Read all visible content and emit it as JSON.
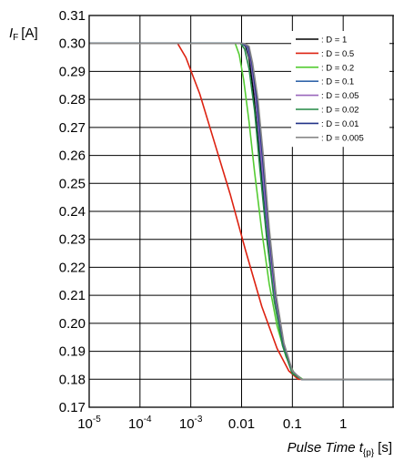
{
  "chart_data": {
    "type": "line",
    "ylabel": {
      "main": "I",
      "sub": "F",
      "unit": "[A]"
    },
    "xlabel": {
      "main": "Pulse Time t",
      "sub": "{p}",
      "unit": "[s]"
    },
    "x_scale": "log",
    "xlim": [
      1e-05,
      10
    ],
    "ylim": [
      0.17,
      0.31
    ],
    "grid": true,
    "legend_position": "top-right",
    "x_ticks": [
      {
        "value": 1e-05,
        "base": "10",
        "exp": "-5"
      },
      {
        "value": 0.0001,
        "base": "10",
        "exp": "-4"
      },
      {
        "value": 0.001,
        "base": "10",
        "exp": "-3"
      },
      {
        "value": 0.01,
        "text": "0.01"
      },
      {
        "value": 0.1,
        "text": "0.1"
      },
      {
        "value": 1,
        "text": "1"
      }
    ],
    "y_ticks": [
      "0.17",
      "0.18",
      "0.19",
      "0.20",
      "0.21",
      "0.22",
      "0.23",
      "0.24",
      "0.25",
      "0.26",
      "0.27",
      "0.28",
      "0.29",
      "0.30",
      "0.31"
    ],
    "series": [
      {
        "name": ": D = 1",
        "color": "#000000",
        "points": [
          [
            1e-05,
            0.3
          ],
          [
            0.01,
            0.3
          ],
          [
            0.012,
            0.299
          ],
          [
            0.014,
            0.295
          ],
          [
            0.017,
            0.283
          ],
          [
            0.022,
            0.262
          ],
          [
            0.03,
            0.235
          ],
          [
            0.045,
            0.208
          ],
          [
            0.065,
            0.192
          ],
          [
            0.1,
            0.182
          ],
          [
            0.15,
            0.18
          ],
          [
            10,
            0.18
          ]
        ]
      },
      {
        "name": ": D = 0.5",
        "color": "#dd2211",
        "points": [
          [
            1e-05,
            0.3
          ],
          [
            0.00055,
            0.3
          ],
          [
            0.0008,
            0.295
          ],
          [
            0.0015,
            0.282
          ],
          [
            0.003,
            0.264
          ],
          [
            0.006,
            0.246
          ],
          [
            0.012,
            0.226
          ],
          [
            0.025,
            0.206
          ],
          [
            0.05,
            0.191
          ],
          [
            0.085,
            0.183
          ],
          [
            0.13,
            0.18
          ],
          [
            10,
            0.18
          ]
        ]
      },
      {
        "name": ": D = 0.2",
        "color": "#55cc33",
        "points": [
          [
            1e-05,
            0.3
          ],
          [
            0.0075,
            0.3
          ],
          [
            0.009,
            0.296
          ],
          [
            0.011,
            0.287
          ],
          [
            0.014,
            0.272
          ],
          [
            0.018,
            0.254
          ],
          [
            0.025,
            0.233
          ],
          [
            0.035,
            0.214
          ],
          [
            0.05,
            0.199
          ],
          [
            0.075,
            0.188
          ],
          [
            0.11,
            0.182
          ],
          [
            0.16,
            0.18
          ],
          [
            10,
            0.18
          ]
        ]
      },
      {
        "name": ": D = 0.1",
        "color": "#3366aa",
        "points": [
          [
            1e-05,
            0.3
          ],
          [
            0.01,
            0.3
          ],
          [
            0.0125,
            0.299
          ],
          [
            0.015,
            0.294
          ],
          [
            0.019,
            0.28
          ],
          [
            0.024,
            0.259
          ],
          [
            0.032,
            0.234
          ],
          [
            0.045,
            0.21
          ],
          [
            0.065,
            0.193
          ],
          [
            0.1,
            0.183
          ],
          [
            0.15,
            0.18
          ],
          [
            10,
            0.18
          ]
        ]
      },
      {
        "name": ": D = 0.05",
        "color": "#9966bb",
        "points": [
          [
            1e-05,
            0.3
          ],
          [
            0.0105,
            0.3
          ],
          [
            0.013,
            0.299
          ],
          [
            0.0155,
            0.293
          ],
          [
            0.0195,
            0.279
          ],
          [
            0.025,
            0.258
          ],
          [
            0.033,
            0.233
          ],
          [
            0.046,
            0.209
          ],
          [
            0.066,
            0.193
          ],
          [
            0.1,
            0.183
          ],
          [
            0.15,
            0.18
          ],
          [
            10,
            0.18
          ]
        ]
      },
      {
        "name": ": D = 0.02",
        "color": "#228844",
        "points": [
          [
            1e-05,
            0.3
          ],
          [
            0.0095,
            0.3
          ],
          [
            0.0115,
            0.298
          ],
          [
            0.014,
            0.291
          ],
          [
            0.018,
            0.276
          ],
          [
            0.023,
            0.255
          ],
          [
            0.031,
            0.231
          ],
          [
            0.044,
            0.208
          ],
          [
            0.064,
            0.192
          ],
          [
            0.1,
            0.182
          ],
          [
            0.15,
            0.18
          ],
          [
            10,
            0.18
          ]
        ]
      },
      {
        "name": ": D = 0.01",
        "color": "#223388",
        "points": [
          [
            1e-05,
            0.3
          ],
          [
            0.0108,
            0.3
          ],
          [
            0.0135,
            0.299
          ],
          [
            0.016,
            0.293
          ],
          [
            0.02,
            0.28
          ],
          [
            0.026,
            0.259
          ],
          [
            0.034,
            0.234
          ],
          [
            0.047,
            0.21
          ],
          [
            0.067,
            0.193
          ],
          [
            0.1,
            0.183
          ],
          [
            0.15,
            0.18
          ],
          [
            10,
            0.18
          ]
        ]
      },
      {
        "name": ": D = 0.005",
        "color": "#888888",
        "points": [
          [
            1e-05,
            0.3
          ],
          [
            0.0112,
            0.3
          ],
          [
            0.014,
            0.299
          ],
          [
            0.0165,
            0.293
          ],
          [
            0.021,
            0.28
          ],
          [
            0.027,
            0.259
          ],
          [
            0.035,
            0.234
          ],
          [
            0.048,
            0.21
          ],
          [
            0.068,
            0.193
          ],
          [
            0.1,
            0.183
          ],
          [
            0.15,
            0.18
          ],
          [
            10,
            0.18
          ]
        ]
      }
    ]
  }
}
